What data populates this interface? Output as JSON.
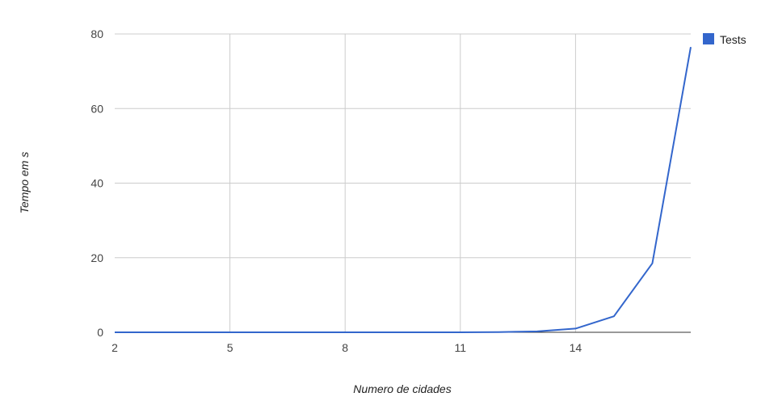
{
  "chart_data": {
    "type": "line",
    "title": "",
    "xlabel": "Numero de cidades",
    "ylabel": "Tempo em s",
    "x": [
      2,
      3,
      4,
      5,
      6,
      7,
      8,
      9,
      10,
      11,
      12,
      13,
      14,
      15,
      16,
      17
    ],
    "xticks": [
      "2",
      "5",
      "8",
      "11",
      "14"
    ],
    "xlim": [
      2,
      17
    ],
    "yticks": [
      "0",
      "20",
      "40",
      "60",
      "80"
    ],
    "ylim": [
      0,
      80
    ],
    "grid": true,
    "legend_position": "right",
    "series": [
      {
        "name": "Tests",
        "color": "#3366cc",
        "values": [
          0,
          0,
          0,
          0,
          0,
          0,
          0,
          0,
          0,
          0,
          0.05,
          0.25,
          1.0,
          4.3,
          18.5,
          76.5
        ]
      }
    ]
  }
}
